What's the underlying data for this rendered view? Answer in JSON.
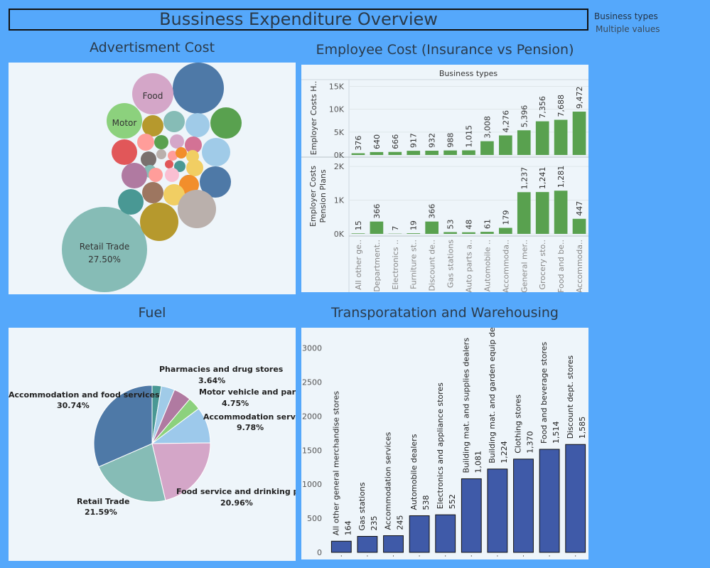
{
  "dashboard": {
    "title": "Bussiness Expenditure Overview",
    "filter_title": "Business types",
    "filter_value": "Multiple values"
  },
  "panels": {
    "advert_title": "Advertisment Cost",
    "employee_title": "Employee Cost (Insurance vs Pension)",
    "fuel_title": "Fuel",
    "transport_title": "Transporatation and Warehousing"
  },
  "chart_data": [
    {
      "type": "bubble",
      "id": "advertisement",
      "title": "Advertisment Cost",
      "labeled": [
        {
          "label": "Retail Trade",
          "value_label": "27.50%"
        },
        {
          "label": "Food"
        },
        {
          "label": "Motor"
        }
      ]
    },
    {
      "type": "bar",
      "id": "employee",
      "title": "Employee Cost (Insurance vs Pension)",
      "header": "Business types",
      "categories": [
        "All other ge..",
        "Department..",
        "Electronics ..",
        "Furniture st..",
        "Discount de..",
        "Gas stations",
        "Auto parts a..",
        "Automobile ..",
        "Accommoda..",
        "General mer..",
        "Grocery sto..",
        "Food and be..",
        "Accommoda.."
      ],
      "series": [
        {
          "name": "Employer Costs H..",
          "values": [
            376,
            640,
            666,
            917,
            932,
            988,
            1015,
            3008,
            4276,
            5396,
            7356,
            7688,
            9472
          ],
          "labels": [
            "376",
            "640",
            "666",
            "917",
            "932",
            "988",
            "1,015",
            "3,008",
            "4,276",
            "5,396",
            "7,356",
            "7,688",
            "9,472"
          ],
          "ylim": [
            0,
            16000
          ],
          "ticks": [
            0,
            5000,
            10000,
            15000
          ],
          "tick_labels": [
            "0K",
            "5K",
            "10K",
            "15K"
          ]
        },
        {
          "name": "Employer Costs Pension Plans",
          "values": [
            15,
            366,
            7,
            19,
            366,
            53,
            48,
            61,
            179,
            1237,
            1241,
            1281,
            447
          ],
          "labels": [
            "15",
            "366",
            "7",
            "19",
            "366",
            "53",
            "48",
            "61",
            "179",
            "1,237",
            "1,241",
            "1,281",
            "447"
          ],
          "ylim": [
            0,
            2150
          ],
          "ticks": [
            0,
            1000,
            2000
          ],
          "tick_labels": [
            "0K",
            "1K",
            "2K"
          ]
        }
      ],
      "color": "#59a14f"
    },
    {
      "type": "pie",
      "id": "fuel",
      "title": "Fuel",
      "slices": [
        {
          "label": "",
          "value": 2.5,
          "color": "#499894"
        },
        {
          "label": "Pharmacies and drug stores",
          "value": 3.64,
          "value_label": "3.64%",
          "color": "#a0cbe8"
        },
        {
          "label": "Motor vehicle and parts",
          "value": 4.75,
          "value_label": "4.75%",
          "color": "#b07aa1"
        },
        {
          "label": "",
          "value": 3.5,
          "color": "#8cd17d"
        },
        {
          "label": "Accommodation services",
          "value": 9.78,
          "value_label": "9.78%",
          "color": "#9dc9eb"
        },
        {
          "label": "Food service and drinking places",
          "value": 20.96,
          "value_label": "20.96%",
          "color": "#d4a6c8"
        },
        {
          "label": "Retail Trade",
          "value": 21.59,
          "value_label": "21.59%",
          "color": "#86bcb6"
        },
        {
          "label": "Accommodation and food services",
          "value": 30.74,
          "value_label": "30.74%",
          "color": "#4e79a7"
        }
      ]
    },
    {
      "type": "bar",
      "id": "transport",
      "title": "Transporatation and Warehousing",
      "categories": [
        "All other general merchandise stores",
        "Gas stations",
        "Accommodation services",
        "Automobile dealers",
        "Electronics and appliance stores",
        "Building mat. and supplies dealers",
        "Building mat. and garden equip dealers",
        "Clothing stores",
        "Food and beverage stores",
        "Discount dept. stores"
      ],
      "values": [
        164,
        235,
        245,
        538,
        552,
        1081,
        1224,
        1370,
        1514,
        1585
      ],
      "labels": [
        "164",
        "235",
        "245",
        "538",
        "552",
        "1,081",
        "1,224",
        "1,370",
        "1,514",
        "1,585"
      ],
      "ylim": [
        0,
        3300
      ],
      "ticks": [
        0,
        500,
        1000,
        1500,
        2000,
        2500,
        3000
      ],
      "color": "#3f5aa8"
    }
  ]
}
